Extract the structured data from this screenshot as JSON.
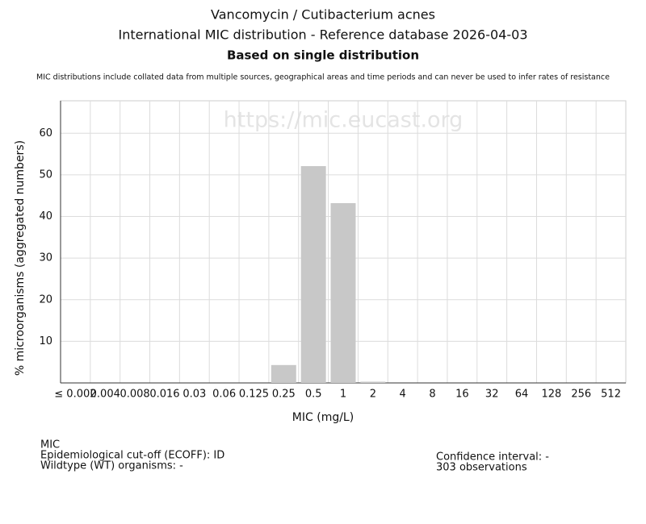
{
  "chart_data": {
    "type": "bar",
    "title": "Vancomycin / Cutibacterium acnes",
    "subtitle": "International MIC distribution - Reference database 2026-04-03",
    "subtitle2": "Based on single distribution",
    "note": "MIC distributions include collated data from multiple sources, geographical areas and time periods and can never be used to infer rates of resistance",
    "watermark": "https://mic.eucast.org",
    "xlabel": "MIC (mg/L)",
    "ylabel": "% microorganisms (aggregated numbers)",
    "categories": [
      "≤ 0.002",
      "0.004",
      "0.008",
      "0.016",
      "0.03",
      "0.06",
      "0.125",
      "0.25",
      "0.5",
      "1",
      "2",
      "4",
      "8",
      "16",
      "32",
      "64",
      "128",
      "256",
      "512"
    ],
    "values": [
      0,
      0,
      0,
      0,
      0,
      0,
      0,
      4.3,
      52.1,
      43.2,
      0.3,
      0,
      0,
      0,
      0,
      0,
      0,
      0,
      0
    ],
    "color": "#c8c8c8",
    "ylim": [
      0,
      67.8
    ],
    "yticks": [
      10,
      20,
      30,
      40,
      50,
      60
    ],
    "grid": true,
    "footer_left": [
      "MIC",
      "Epidemiological cut-off (ECOFF): ID",
      "Wildtype (WT) organisms:  -"
    ],
    "footer_right": [
      "Confidence interval: -",
      "303 observations"
    ]
  }
}
